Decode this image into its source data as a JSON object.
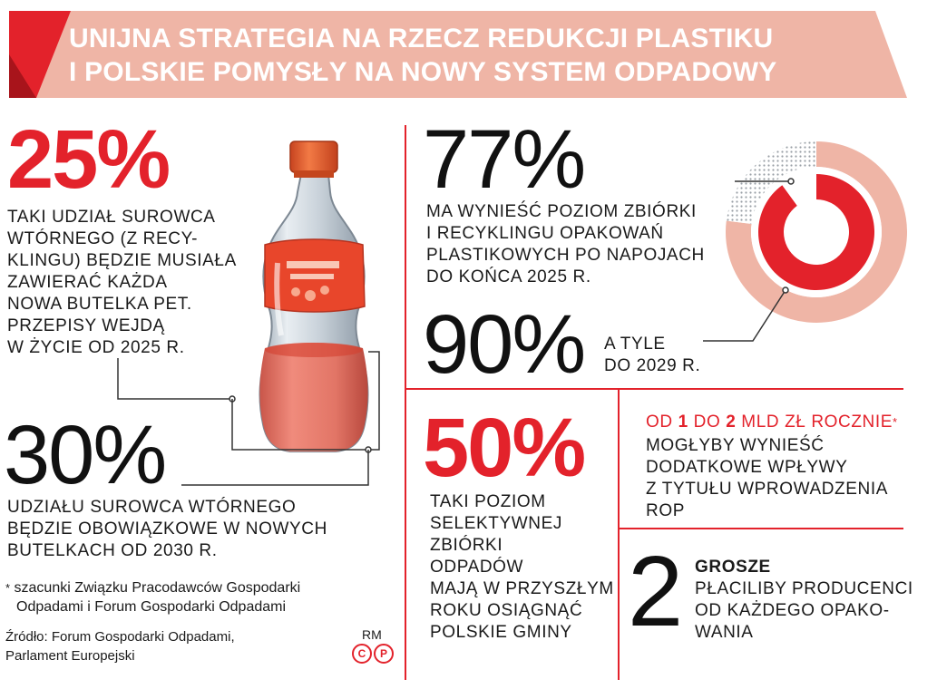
{
  "header": {
    "title_line1": "UNIJNA STRATEGIA NA RZECZ REDUKCJI PLASTIKU",
    "title_line2": "I POLSKIE POMYSŁY NA NOWY SYSTEM ODPADOWY"
  },
  "left": {
    "stat1": {
      "value": "25%",
      "lines": [
        "TAKI UDZIAŁ SUROWCA",
        "WTÓRNEGO (Z RECY-",
        "KLINGU) BĘDZIE MUSIAŁA",
        "ZAWIERAĆ KAŻDA",
        "NOWA BUTELKA PET.",
        "PRZEPISY WEJDĄ",
        "W ŻYCIE OD 2025 R."
      ]
    },
    "stat2": {
      "value": "30%",
      "lines": [
        "UDZIAŁU SUROWCA WTÓRNEGO",
        "BĘDZIE OBOWIĄZKOWE W NOWYCH",
        "BUTELKACH OD 2030 R."
      ]
    },
    "footnote": {
      "mark": "*",
      "lines": [
        "szacunki Związku Pracodawców Gospodarki",
        "Odpadami i Forum Gospodarki Odpadami"
      ]
    },
    "source": {
      "lines": [
        "Źródło: Forum Gospodarki Odpadami,",
        "Parlament Europejski"
      ]
    },
    "author": "RM",
    "copyright_c": "C",
    "copyright_p": "P"
  },
  "right_top": {
    "stat1": {
      "value": "77%",
      "lines": [
        "MA WYNIEŚĆ POZIOM ZBIÓRKI",
        "I RECYKLINGU OPAKOWAŃ",
        "PLASTIKOWYCH PO NAPOJACH",
        "DO KOŃCA 2025 R."
      ]
    },
    "stat2": {
      "value": "90%",
      "lines": [
        "A TYLE",
        "DO 2029 R."
      ]
    },
    "donut": {
      "outer_fraction": 0.77,
      "inner_fraction": 0.9,
      "color_outer": "#efb5a6",
      "color_inner": "#e3222b",
      "color_rest": "#c8ccd0"
    }
  },
  "bottom_mid": {
    "value": "50%",
    "lines": [
      "TAKI POZIOM",
      "SELEKTYWNEJ",
      "ZBIÓRKI",
      "ODPADÓW",
      "MAJĄ W PRZYSZŁYM",
      "ROKU OSIĄGNĄĆ",
      "POLSKIE GMINY"
    ]
  },
  "bottom_right1": {
    "head_od": "OD ",
    "head_v1": "1",
    "head_do": " DO ",
    "head_v2": "2",
    "head_rest": " MLD ZŁ ROCZNIE",
    "head_star": "*",
    "lines": [
      "MOGŁYBY WYNIEŚĆ",
      "DODATKOWE WPŁYWY",
      "Z TYTUŁU WPROWADZENIA",
      "ROP"
    ]
  },
  "bottom_right2": {
    "value": "2",
    "label": "GROSZE",
    "lines": [
      "PŁACILIBY PRODUCENCI",
      "OD KAŻDEGO OPAKO-",
      "WANIA"
    ]
  },
  "colors": {
    "accent": "#e3222b",
    "banner": "#efb5a6",
    "banner_dark": "#a8141b"
  }
}
